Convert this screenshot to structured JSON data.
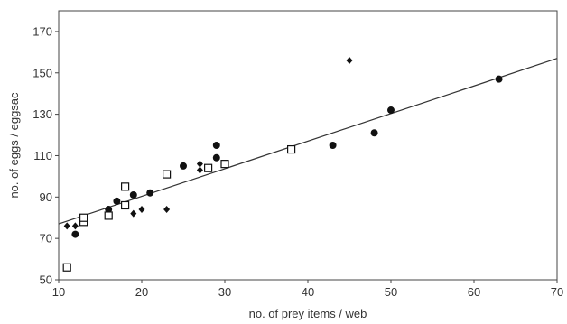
{
  "chart_data": {
    "type": "scatter",
    "title": "",
    "xlabel": "no. of prey items / web",
    "ylabel": "no. of eggs / eggsac",
    "xlim": [
      10,
      70
    ],
    "ylim": [
      50,
      180
    ],
    "x_ticks": [
      10,
      20,
      30,
      40,
      50,
      60,
      70
    ],
    "y_ticks": [
      50,
      70,
      90,
      110,
      130,
      150,
      170
    ],
    "grid": false,
    "legend": "none",
    "series": [
      {
        "marker": "filled-circle",
        "color": "#111111",
        "points": [
          [
            12,
            72
          ],
          [
            16,
            84
          ],
          [
            17,
            88
          ],
          [
            19,
            91
          ],
          [
            21,
            92
          ],
          [
            25,
            105
          ],
          [
            29,
            109
          ],
          [
            29,
            115
          ],
          [
            43,
            115
          ],
          [
            48,
            121
          ],
          [
            50,
            132
          ],
          [
            63,
            147
          ]
        ]
      },
      {
        "marker": "open-square",
        "color": "#111111",
        "points": [
          [
            11,
            56
          ],
          [
            13,
            78
          ],
          [
            13,
            80
          ],
          [
            16,
            81
          ],
          [
            18,
            86
          ],
          [
            18,
            95
          ],
          [
            23,
            101
          ],
          [
            28,
            104
          ],
          [
            30,
            106
          ],
          [
            38,
            113
          ]
        ]
      },
      {
        "marker": "filled-diamond",
        "color": "#111111",
        "points": [
          [
            11,
            76
          ],
          [
            12,
            76
          ],
          [
            19,
            82
          ],
          [
            20,
            84
          ],
          [
            23,
            84
          ],
          [
            27,
            103
          ],
          [
            27,
            106
          ],
          [
            45,
            156
          ]
        ]
      }
    ],
    "trendline": {
      "x": [
        10,
        70
      ],
      "y": [
        77,
        157
      ]
    }
  }
}
